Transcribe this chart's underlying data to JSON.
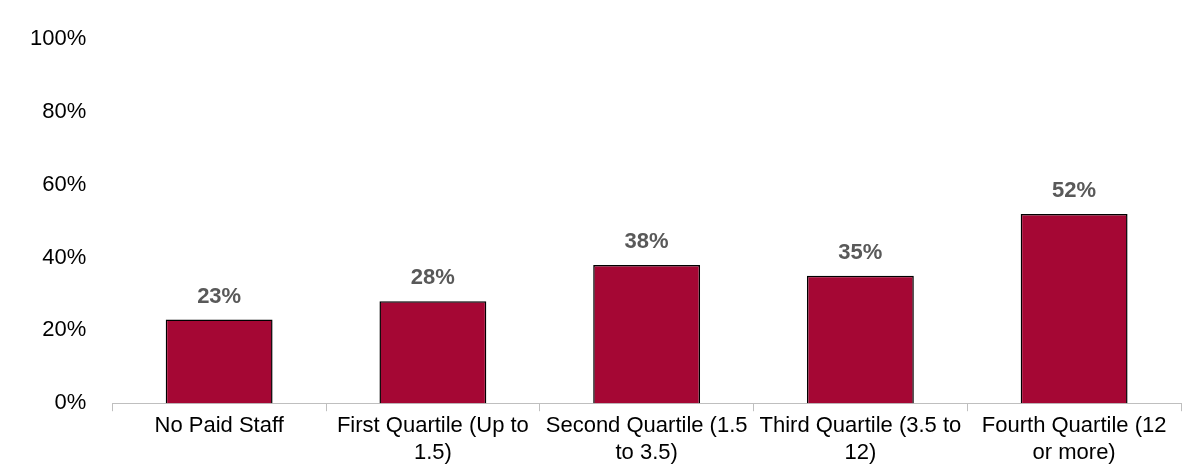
{
  "chart_data": {
    "type": "bar",
    "categories": [
      "No Paid Staff",
      "First Quartile (Up to 1.5)",
      "Second Quartile (1.5 to 3.5)",
      "Third Quartile (3.5 to 12)",
      "Fourth Quartile (12 or more)"
    ],
    "values": [
      23,
      28,
      38,
      35,
      52
    ],
    "value_labels": [
      "23%",
      "28%",
      "38%",
      "35%",
      "52%"
    ],
    "color": "#a50734",
    "ylim": [
      0,
      100
    ],
    "yticks": [
      {
        "value": 0,
        "label": "0%"
      },
      {
        "value": 20,
        "label": "20%"
      },
      {
        "value": 40,
        "label": "40%"
      },
      {
        "value": 60,
        "label": "60%"
      },
      {
        "value": 80,
        "label": "80%"
      },
      {
        "value": 100,
        "label": "100%"
      }
    ],
    "grid": false,
    "legend": false
  }
}
